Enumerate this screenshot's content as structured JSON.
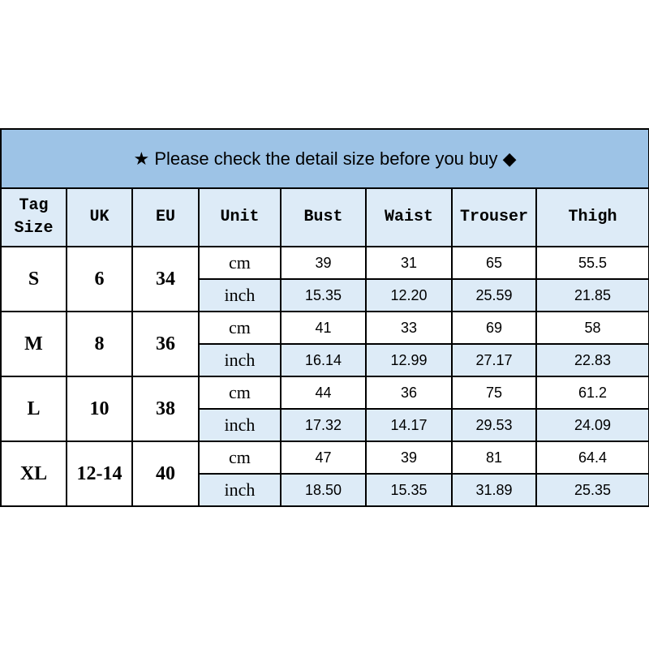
{
  "title": {
    "star_icon": "★",
    "text": "Please check the detail size before you buy",
    "diamond_icon": "◆"
  },
  "headers": [
    "Tag\nSize",
    "UK",
    "EU",
    "Unit",
    "Bust",
    "Waist",
    "Trouser",
    "Thigh"
  ],
  "header_tag": "Tag",
  "header_size": "Size",
  "rows": [
    {
      "tag": "S",
      "uk": "6",
      "eu": "34",
      "cm": [
        "39",
        "31",
        "65",
        "55.5"
      ],
      "inch": [
        "15.35",
        "12.20",
        "25.59",
        "21.85"
      ]
    },
    {
      "tag": "M",
      "uk": "8",
      "eu": "36",
      "cm": [
        "41",
        "33",
        "69",
        "58"
      ],
      "inch": [
        "16.14",
        "12.99",
        "27.17",
        "22.83"
      ]
    },
    {
      "tag": "L",
      "uk": "10",
      "eu": "38",
      "cm": [
        "44",
        "36",
        "75",
        "61.2"
      ],
      "inch": [
        "17.32",
        "14.17",
        "29.53",
        "24.09"
      ]
    },
    {
      "tag": "XL",
      "uk": "12-14",
      "eu": "40",
      "cm": [
        "47",
        "39",
        "81",
        "64.4"
      ],
      "inch": [
        "18.50",
        "15.35",
        "31.89",
        "25.35"
      ]
    }
  ],
  "units": {
    "cm": "cm",
    "inch": "inch"
  },
  "colors": {
    "title_bg": "#9dc3e6",
    "header_bg": "#ddebf7"
  }
}
